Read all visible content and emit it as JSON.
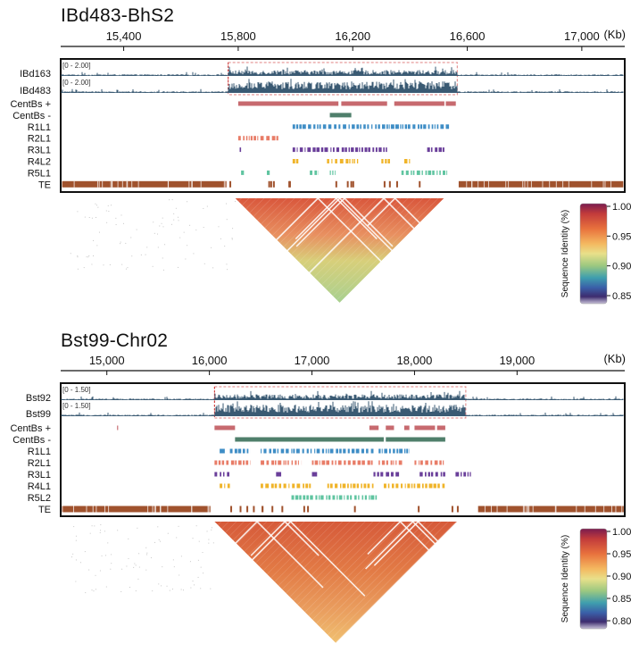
{
  "panels": [
    {
      "id": "panel1",
      "title": "IBd483-BhS2",
      "unit": "(Kb)",
      "xlim": [
        15180,
        17150
      ],
      "ticks": [
        15400,
        15800,
        16200,
        16600,
        17000
      ],
      "tick_labels": [
        "15,400",
        "15,800",
        "16,200",
        "16,600",
        "17,000"
      ],
      "region": [
        15765,
        16565
      ],
      "coverage_tracks": [
        {
          "name": "IBd163",
          "range_label": "[0 - 2.00]"
        },
        {
          "name": "IBd483",
          "range_label": "[0 - 2.00]"
        }
      ],
      "feature_tracks": [
        {
          "name": "CentBs +",
          "color": "#c76a6f",
          "segments": [
            [
              15800,
              16150
            ],
            [
              16160,
              16320
            ],
            [
              16345,
              16520
            ],
            [
              16525,
              16560
            ]
          ]
        },
        {
          "name": "CentBs -",
          "color": "#4f7f6b",
          "segments": [
            [
              16120,
              16195
            ]
          ]
        },
        {
          "name": "R1L1",
          "color": "#3f8ec6",
          "segments": [
            [
              15990,
              16540
            ]
          ]
        },
        {
          "name": "R2L1",
          "color": "#e87c67",
          "segments": [
            [
              15800,
              15940
            ]
          ]
        },
        {
          "name": "R3L1",
          "color": "#6a3f9a",
          "segments": [
            [
              15805,
              15810
            ],
            [
              15990,
              16320
            ],
            [
              16460,
              16520
            ]
          ]
        },
        {
          "name": "R4L2",
          "color": "#f0b429",
          "segments": [
            [
              15990,
              16010
            ],
            [
              16110,
              16220
            ],
            [
              16300,
              16330
            ],
            [
              16380,
              16400
            ]
          ]
        },
        {
          "name": "R5L1",
          "color": "#5fc4a0",
          "segments": [
            [
              15810,
              15820
            ],
            [
              15900,
              15910
            ],
            [
              16050,
              16080
            ],
            [
              16120,
              16140
            ],
            [
              16370,
              16530
            ]
          ]
        },
        {
          "name": "TE",
          "color": "#a0522d",
          "segments": [
            [
              15185,
              15760
            ],
            [
              16570,
              17145
            ]
          ]
        }
      ],
      "colorbar": {
        "label": "Sequence Identity (%)",
        "ticks": [
          "1.00",
          "0.95",
          "0.90",
          "0.85"
        ]
      }
    },
    {
      "id": "panel2",
      "title": "Bst99-Chr02",
      "unit": "(Kb)",
      "xlim": [
        14550,
        20050
      ],
      "ticks": [
        15000,
        16000,
        17000,
        18000,
        19000
      ],
      "tick_labels": [
        "15,000",
        "16,000",
        "17,000",
        "18,000",
        "19,000"
      ],
      "region": [
        16050,
        18500
      ],
      "coverage_tracks": [
        {
          "name": "Bst92",
          "range_label": "[0 - 1.50]"
        },
        {
          "name": "Bst99",
          "range_label": "[0 - 1.50]"
        }
      ],
      "feature_tracks": [
        {
          "name": "CentBs +",
          "color": "#c76a6f",
          "segments": [
            [
              15100,
              15110
            ],
            [
              16050,
              16250
            ],
            [
              17560,
              17650
            ],
            [
              17720,
              17800
            ],
            [
              17900,
              17950
            ],
            [
              18000,
              18200
            ],
            [
              18220,
              18300
            ]
          ]
        },
        {
          "name": "CentBs -",
          "color": "#4f7f6b",
          "segments": [
            [
              16250,
              17700
            ],
            [
              17720,
              18300
            ]
          ]
        },
        {
          "name": "R1L1",
          "color": "#3f8ec6",
          "segments": [
            [
              16100,
              16150
            ],
            [
              16200,
              16400
            ],
            [
              16500,
              17600
            ],
            [
              17650,
              17950
            ]
          ]
        },
        {
          "name": "R2L1",
          "color": "#e87c67",
          "segments": [
            [
              16050,
              16400
            ],
            [
              16500,
              16900
            ],
            [
              17000,
              17600
            ],
            [
              17650,
              17900
            ],
            [
              18000,
              18300
            ]
          ]
        },
        {
          "name": "R3L1",
          "color": "#6a3f9a",
          "segments": [
            [
              16050,
              16200
            ],
            [
              16650,
              16700
            ],
            [
              17000,
              17050
            ],
            [
              17600,
              17850
            ],
            [
              18050,
              18300
            ],
            [
              18400,
              18550
            ]
          ]
        },
        {
          "name": "R4L1",
          "color": "#f0b429",
          "segments": [
            [
              16100,
              16200
            ],
            [
              16500,
              17000
            ],
            [
              17150,
              17600
            ],
            [
              17700,
              18300
            ]
          ]
        },
        {
          "name": "R5L2",
          "color": "#5fc4a0",
          "segments": [
            [
              16800,
              17650
            ]
          ]
        },
        {
          "name": "TE",
          "color": "#a0522d",
          "segments": [
            [
              14560,
              16010
            ],
            [
              18620,
              20040
            ]
          ]
        }
      ],
      "colorbar": {
        "label": "Sequence Identity (%)",
        "ticks": [
          "1.00",
          "0.95",
          "0.90",
          "0.85",
          "0.80"
        ]
      }
    }
  ],
  "colors": {
    "coverage": "#3a5a73",
    "frame": "#111111",
    "region_outline": "#e08080",
    "region_start": "#cc3333",
    "colorbar_stops": [
      "#7a1c4f",
      "#c23b3b",
      "#e8713d",
      "#f4b860",
      "#e9e08a",
      "#9cc880",
      "#3f9fae",
      "#3a5fa8",
      "#3d2c6e",
      "#c8c2d8"
    ]
  }
}
